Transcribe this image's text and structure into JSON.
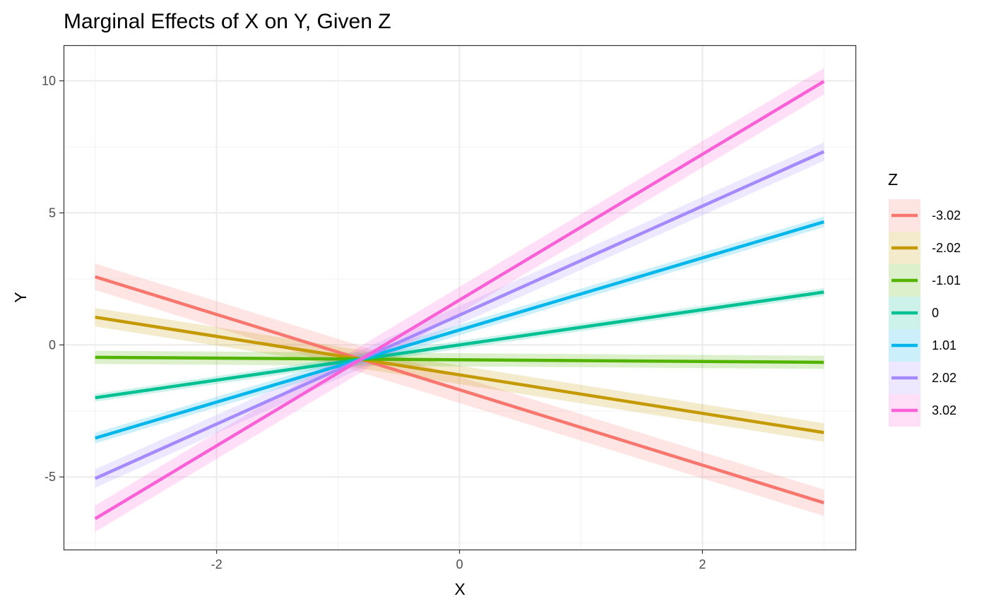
{
  "chart_data": {
    "type": "line",
    "title": "Marginal Effects of X on Y, Given Z",
    "xlabel": "X",
    "ylabel": "Y",
    "xlim": [
      -3.26,
      3.26
    ],
    "ylim": [
      -7.75,
      11.35
    ],
    "x_ticks": [
      -2,
      0,
      2
    ],
    "x_tick_labels": [
      "-2",
      "0",
      "2"
    ],
    "x_minor_ticks": [
      -3,
      -1,
      1,
      3
    ],
    "y_ticks": [
      -5,
      0,
      5,
      10
    ],
    "y_tick_labels": [
      "-5",
      "0",
      "5",
      "10"
    ],
    "y_minor_ticks": [
      -7.5,
      -2.5,
      2.5,
      7.5
    ],
    "grid": true,
    "legend": {
      "title": "Z",
      "position": "right"
    },
    "series": [
      {
        "name": "-3.02",
        "color": "#F8766D",
        "x": [
          -3,
          3
        ],
        "y": [
          2.58,
          -5.98
        ],
        "ci_lower": [
          2.08,
          -6.48
        ],
        "ci_upper": [
          3.08,
          -5.48
        ]
      },
      {
        "name": "-2.02",
        "color": "#C49A00",
        "x": [
          -3,
          3
        ],
        "y": [
          1.05,
          -3.32
        ],
        "ci_lower": [
          0.7,
          -3.67
        ],
        "ci_upper": [
          1.4,
          -2.97
        ]
      },
      {
        "name": "-1.01",
        "color": "#53B400",
        "x": [
          -3,
          3
        ],
        "y": [
          -0.47,
          -0.66
        ],
        "ci_lower": [
          -0.72,
          -0.91
        ],
        "ci_upper": [
          -0.22,
          -0.41
        ]
      },
      {
        "name": "0",
        "color": "#00C094",
        "x": [
          -3,
          3
        ],
        "y": [
          -2.0,
          2.0
        ],
        "ci_lower": [
          -2.15,
          1.85
        ],
        "ci_upper": [
          -1.85,
          2.15
        ]
      },
      {
        "name": "1.01",
        "color": "#00B6EB",
        "x": [
          -3,
          3
        ],
        "y": [
          -3.53,
          4.66
        ],
        "ci_lower": [
          -3.73,
          4.46
        ],
        "ci_upper": [
          -3.33,
          4.86
        ]
      },
      {
        "name": "2.02",
        "color": "#A58AFF",
        "x": [
          -3,
          3
        ],
        "y": [
          -5.06,
          7.32
        ],
        "ci_lower": [
          -5.41,
          6.97
        ],
        "ci_upper": [
          -4.71,
          7.67
        ]
      },
      {
        "name": "3.02",
        "color": "#FB61D7",
        "x": [
          -3,
          3
        ],
        "y": [
          -6.58,
          9.98
        ],
        "ci_lower": [
          -7.08,
          9.48
        ],
        "ci_upper": [
          -6.08,
          10.48
        ]
      }
    ]
  }
}
